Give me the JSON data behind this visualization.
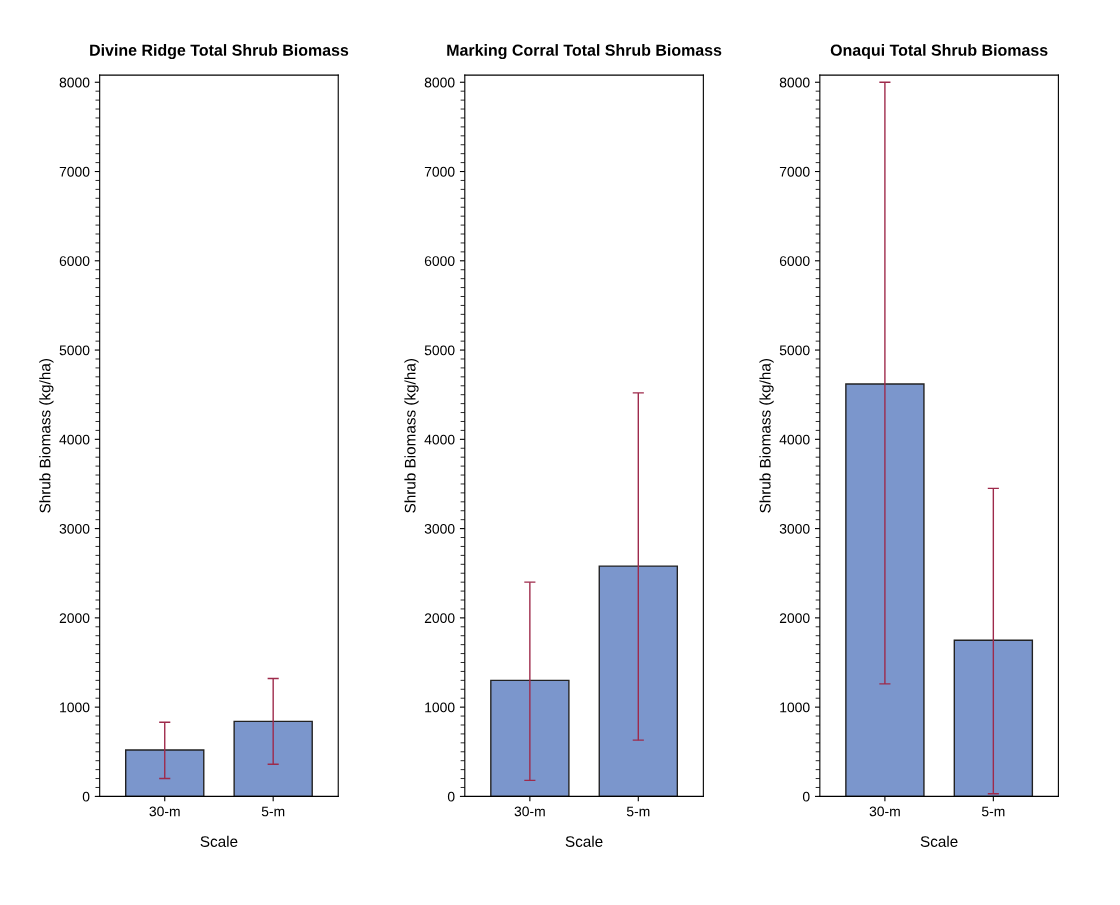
{
  "chart_data": [
    {
      "type": "bar",
      "title": "Divine Ridge Total Shrub Biomass",
      "xlabel": "Scale",
      "ylabel": "Shrub Biomass (kg/ha)",
      "categories": [
        "30-m",
        "5-m"
      ],
      "values": [
        520,
        840
      ],
      "errors": [
        [
          200,
          830
        ],
        [
          360,
          1320
        ]
      ],
      "color": "#7b96cc",
      "ylim": [
        0,
        8080
      ],
      "yticks": [
        0,
        1000,
        2000,
        3000,
        4000,
        5000,
        6000,
        7000,
        8000
      ],
      "grid": false,
      "legend": false
    },
    {
      "type": "bar",
      "title": "Marking Corral Total Shrub Biomass",
      "xlabel": "Scale",
      "ylabel": "Shrub Biomass (kg/ha)",
      "categories": [
        "30-m",
        "5-m"
      ],
      "values": [
        1300,
        2580
      ],
      "errors": [
        [
          180,
          2400
        ],
        [
          630,
          4520
        ]
      ],
      "color": "#7b96cc",
      "ylim": [
        0,
        8080
      ],
      "yticks": [
        0,
        1000,
        2000,
        3000,
        4000,
        5000,
        6000,
        7000,
        8000
      ],
      "grid": false,
      "legend": false
    },
    {
      "type": "bar",
      "title": "Onaqui Total Shrub Biomass",
      "xlabel": "Scale",
      "ylabel": "Shrub Biomass (kg/ha)",
      "categories": [
        "30-m",
        "5-m"
      ],
      "values": [
        4620,
        1750
      ],
      "errors": [
        [
          1260,
          8000
        ],
        [
          30,
          3450
        ]
      ],
      "color": "#7b96cc",
      "ylim": [
        0,
        8080
      ],
      "yticks": [
        0,
        1000,
        2000,
        3000,
        4000,
        5000,
        6000,
        7000,
        8000
      ],
      "grid": false,
      "legend": false
    }
  ]
}
